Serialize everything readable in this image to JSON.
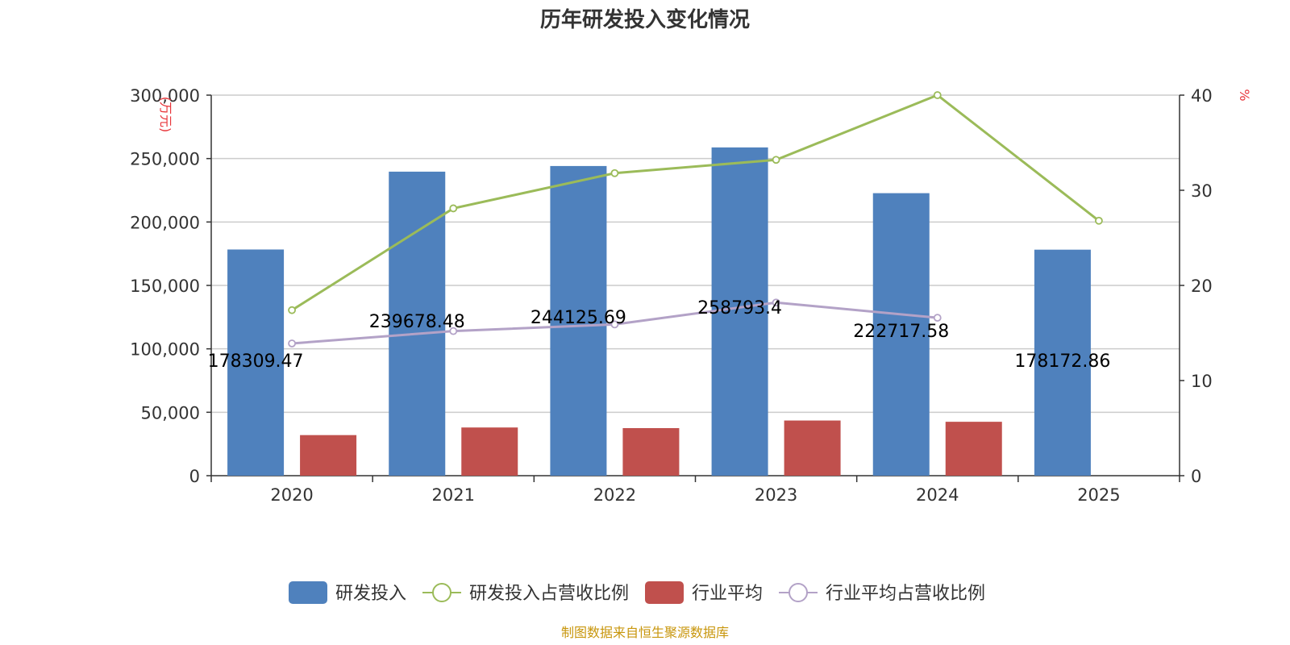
{
  "chart_data": {
    "type": "bar",
    "title": "历年研发投入变化情况",
    "categories": [
      "2020",
      "2021",
      "2022",
      "2023",
      "2024",
      "2025"
    ],
    "left_axis": {
      "unit": "(万元)",
      "ticks": [
        "0",
        "50,000",
        "100,000",
        "150,000",
        "200,000",
        "250,000",
        "300,000"
      ],
      "ylim": [
        0,
        300000
      ]
    },
    "right_axis": {
      "unit": "%",
      "ticks": [
        "0",
        "10",
        "20",
        "30",
        "40"
      ],
      "ylim": [
        0,
        40
      ]
    },
    "grid": true,
    "legend_position": "bottom",
    "series": [
      {
        "name": "研发投入",
        "type": "bar",
        "axis": "left",
        "color": "#4f81bd",
        "values": [
          178309.47,
          239678.48,
          244125.69,
          258793.4,
          222717.58,
          178172.86
        ],
        "labels": [
          "178309.47",
          "239678.48",
          "244125.69",
          "258793.4",
          "222717.58",
          "178172.86"
        ]
      },
      {
        "name": "研发投入占营收比例",
        "type": "line",
        "axis": "right",
        "color": "#9bbb59",
        "values": [
          17.4,
          28.1,
          31.8,
          33.2,
          40.0,
          26.8
        ]
      },
      {
        "name": "行业平均",
        "type": "bar",
        "axis": "left",
        "color": "#c0504d",
        "values": [
          32000,
          38000,
          37500,
          43500,
          42500,
          null
        ]
      },
      {
        "name": "行业平均占营收比例",
        "type": "line",
        "axis": "right",
        "color": "#b3a2c7",
        "values": [
          13.9,
          15.2,
          15.9,
          18.2,
          16.6,
          null
        ]
      }
    ]
  },
  "source": "制图数据来自恒生聚源数据库"
}
